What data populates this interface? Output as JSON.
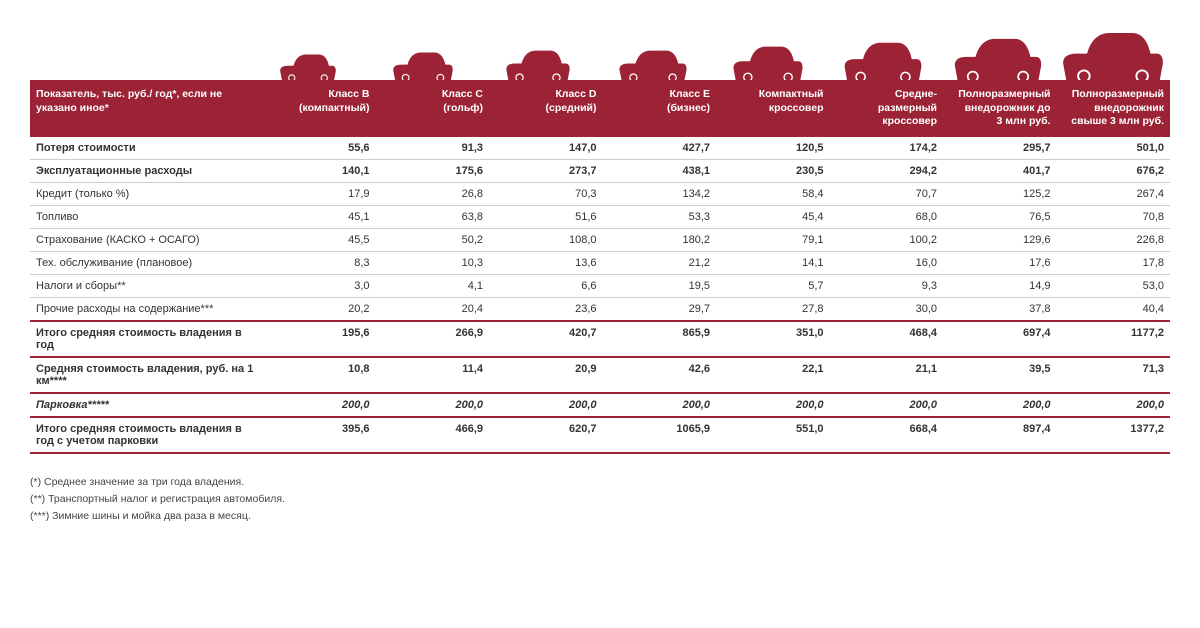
{
  "colors": {
    "header_bg": "#9b2335",
    "header_text": "#ffffff",
    "row_border": "#cccccc",
    "thick_border": "#9b2335",
    "text": "#333333",
    "car_fill": "#9b2335"
  },
  "typography": {
    "base_fontsize": 11,
    "header_fontsize": 10.5,
    "footnote_fontsize": 10.5,
    "bold_rows": [
      "row_loss",
      "row_oper",
      "row_total_year",
      "row_per_km",
      "row_parking",
      "row_total_parking"
    ]
  },
  "car_icons": {
    "heights": [
      26,
      28,
      30,
      30,
      34,
      38,
      42,
      48
    ],
    "widths": [
      58,
      62,
      66,
      70,
      72,
      80,
      90,
      104
    ]
  },
  "table": {
    "header_label": "Показатель, тыс. руб./ год*, если не указано иное*",
    "columns": [
      {
        "line1": "Класс B",
        "line2": "(компактный)"
      },
      {
        "line1": "Класс C",
        "line2": "(гольф)"
      },
      {
        "line1": "Класс D",
        "line2": "(средний)"
      },
      {
        "line1": "Класс E",
        "line2": "(бизнес)"
      },
      {
        "line1": "Компактный",
        "line2": "кроссовер"
      },
      {
        "line1": "Средне-",
        "line2": "размерный",
        "line3": "кроссовер"
      },
      {
        "line1": "Полноразмерный",
        "line2": "внедорожник до",
        "line3": "3 млн руб."
      },
      {
        "line1": "Полноразмерный",
        "line2": "внедорожник",
        "line3": "свыше 3 млн руб."
      }
    ],
    "rows": [
      {
        "id": "row_loss",
        "label": "Потеря стоимости",
        "bold": true,
        "v": [
          "55,6",
          "91,3",
          "147,0",
          "427,7",
          "120,5",
          "174,2",
          "295,7",
          "501,0"
        ]
      },
      {
        "id": "row_oper",
        "label": "Эксплуатационные расходы",
        "bold": true,
        "v": [
          "140,1",
          "175,6",
          "273,7",
          "438,1",
          "230,5",
          "294,2",
          "401,7",
          "676,2"
        ]
      },
      {
        "id": "row_credit",
        "label": "Кредит (только %)",
        "bold": false,
        "v": [
          "17,9",
          "26,8",
          "70,3",
          "134,2",
          "58,4",
          "70,7",
          "125,2",
          "267,4"
        ]
      },
      {
        "id": "row_fuel",
        "label": "Топливо",
        "bold": false,
        "v": [
          "45,1",
          "63,8",
          "51,6",
          "53,3",
          "45,4",
          "68,0",
          "76,5",
          "70,8"
        ]
      },
      {
        "id": "row_ins",
        "label": "Страхование (КАСКО + ОСАГО)",
        "bold": false,
        "v": [
          "45,5",
          "50,2",
          "108,0",
          "180,2",
          "79,1",
          "100,2",
          "129,6",
          "226,8"
        ]
      },
      {
        "id": "row_maint",
        "label": "Тех. обслуживание (плановое)",
        "bold": false,
        "v": [
          "8,3",
          "10,3",
          "13,6",
          "21,2",
          "14,1",
          "16,0",
          "17,6",
          "17,8"
        ]
      },
      {
        "id": "row_tax",
        "label": "Налоги и сборы**",
        "bold": false,
        "v": [
          "3,0",
          "4,1",
          "6,6",
          "19,5",
          "5,7",
          "9,3",
          "14,9",
          "53,0"
        ]
      },
      {
        "id": "row_other",
        "label": "Прочие расходы на содержание***",
        "bold": false,
        "v": [
          "20,2",
          "20,4",
          "23,6",
          "29,7",
          "27,8",
          "30,0",
          "37,8",
          "40,4"
        ]
      },
      {
        "id": "row_total_year",
        "label": "Итого средняя стоимость владения в год",
        "bold": true,
        "thick_above": true,
        "thick_below": true,
        "v": [
          "195,6",
          "266,9",
          "420,7",
          "865,9",
          "351,0",
          "468,4",
          "697,4",
          "1177,2"
        ]
      },
      {
        "id": "row_per_km",
        "label": "Средняя стоимость владения, руб. на 1 км****",
        "bold": true,
        "thick_below": true,
        "v": [
          "10,8",
          "11,4",
          "20,9",
          "42,6",
          "22,1",
          "21,1",
          "39,5",
          "71,3"
        ]
      },
      {
        "id": "row_parking",
        "label": "Парковка*****",
        "bold": true,
        "italic": true,
        "thick_below": true,
        "v": [
          "200,0",
          "200,0",
          "200,0",
          "200,0",
          "200,0",
          "200,0",
          "200,0",
          "200,0"
        ]
      },
      {
        "id": "row_total_parking",
        "label": "Итого средняя стоимость владения в год с учетом парковки",
        "bold": true,
        "thick_below": true,
        "v": [
          "395,6",
          "466,9",
          "620,7",
          "1065,9",
          "551,0",
          "668,4",
          "897,4",
          "1377,2"
        ]
      }
    ]
  },
  "footnotes": [
    "(*) Среднее значение за три года владения.",
    "(**) Транспортный налог и регистрация автомобиля.",
    "(***) Зимние шины и мойка два раза в месяц."
  ]
}
